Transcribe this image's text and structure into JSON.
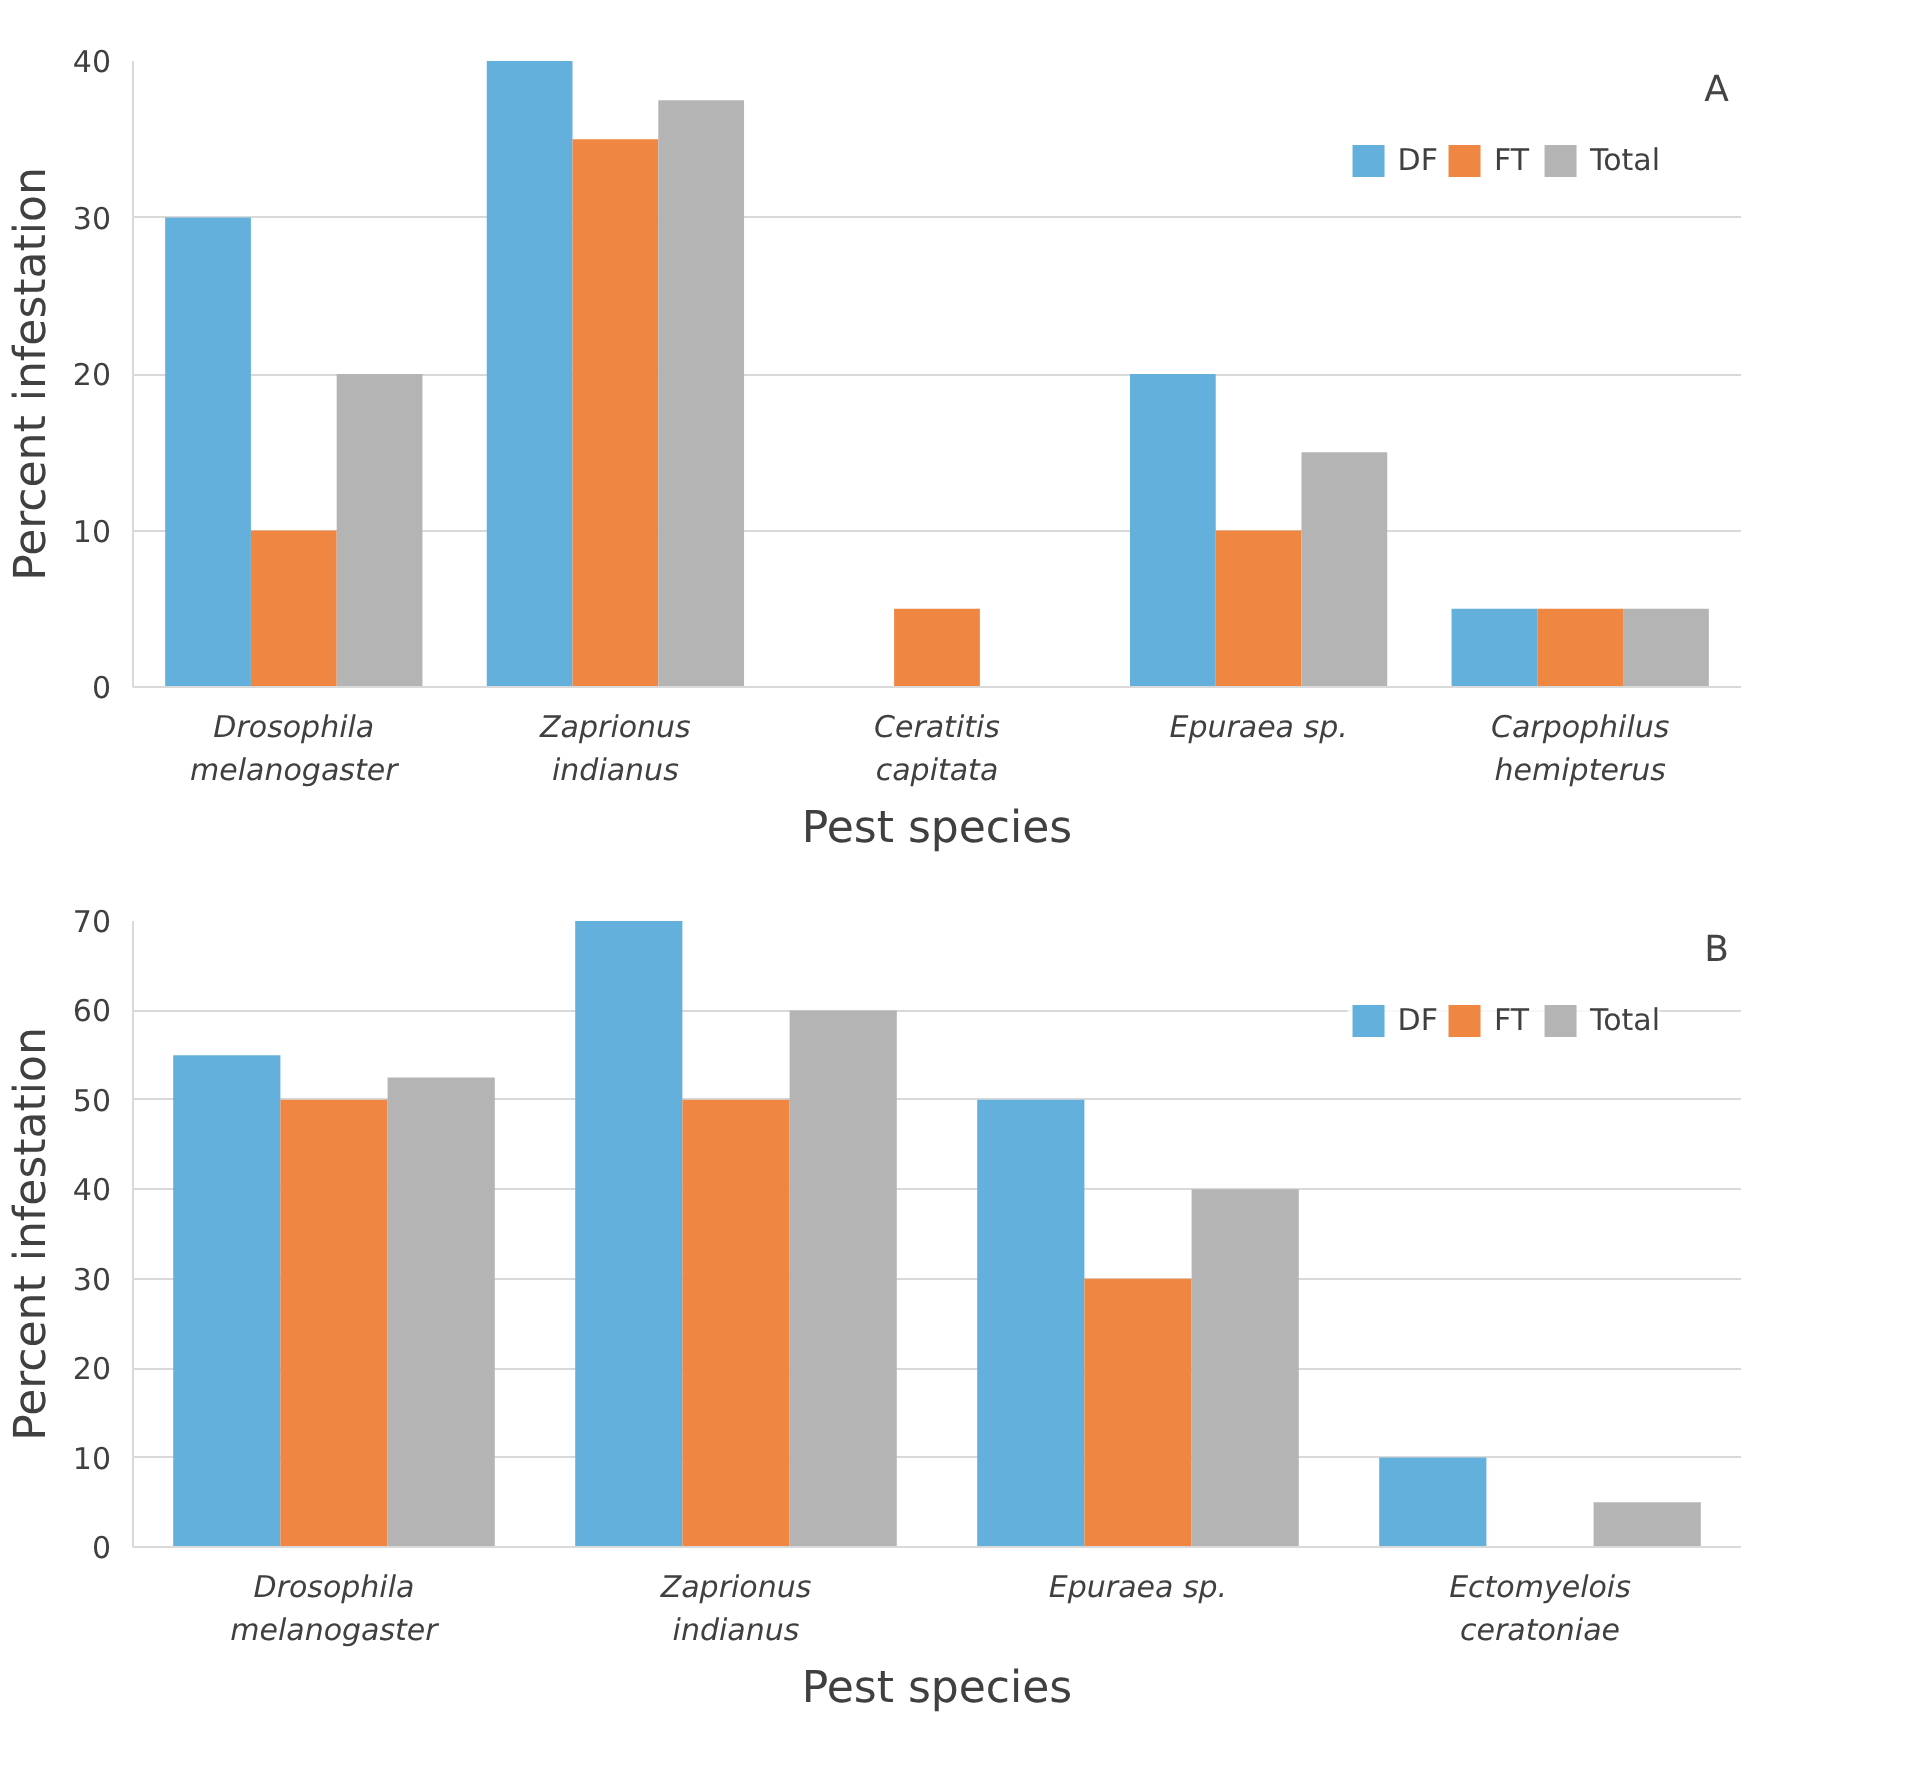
{
  "chart_data": [
    {
      "type": "bar",
      "xlabel": "Pest species",
      "ylabel": "Percent infestation",
      "annotations": [
        "A"
      ],
      "categories": [
        "Drosophila\nmelanogaster",
        "Zaprionus\nindianus",
        "Ceratitis\ncapitata",
        "Epuraea sp.",
        "Carpophilus\nhemipterus"
      ],
      "series": [
        {
          "name": "DF",
          "color": "#64b0dc",
          "values": [
            30,
            40,
            0,
            20,
            5
          ]
        },
        {
          "name": "FT",
          "color": "#ef8641",
          "values": [
            10,
            35,
            5,
            10,
            5
          ]
        },
        {
          "name": "Total",
          "color": "#b4b4b4",
          "values": [
            20,
            37.5,
            0,
            15,
            5
          ]
        }
      ],
      "ylim": [
        0,
        40
      ],
      "yticks": [
        0,
        10,
        20,
        30,
        40
      ],
      "grid": "y",
      "legend": "top right"
    },
    {
      "type": "bar",
      "xlabel": "Pest species",
      "ylabel": "Percent infestation",
      "annotations": [
        "B"
      ],
      "categories": [
        "Drosophila\nmelanogaster",
        "Zaprionus\nindianus",
        "Epuraea sp.",
        "Ectomyelois\nceratoniae"
      ],
      "series": [
        {
          "name": "DF",
          "color": "#64b0dc",
          "values": [
            55,
            70,
            50,
            10
          ]
        },
        {
          "name": "FT",
          "color": "#ef8641",
          "values": [
            50,
            50,
            30,
            0
          ]
        },
        {
          "name": "Total",
          "color": "#b4b4b4",
          "values": [
            52.5,
            60,
            40,
            5
          ]
        }
      ],
      "ylim": [
        0,
        70
      ],
      "yticks": [
        0,
        10,
        20,
        30,
        40,
        50,
        60,
        70
      ],
      "grid": "y",
      "legend": "top right"
    }
  ]
}
